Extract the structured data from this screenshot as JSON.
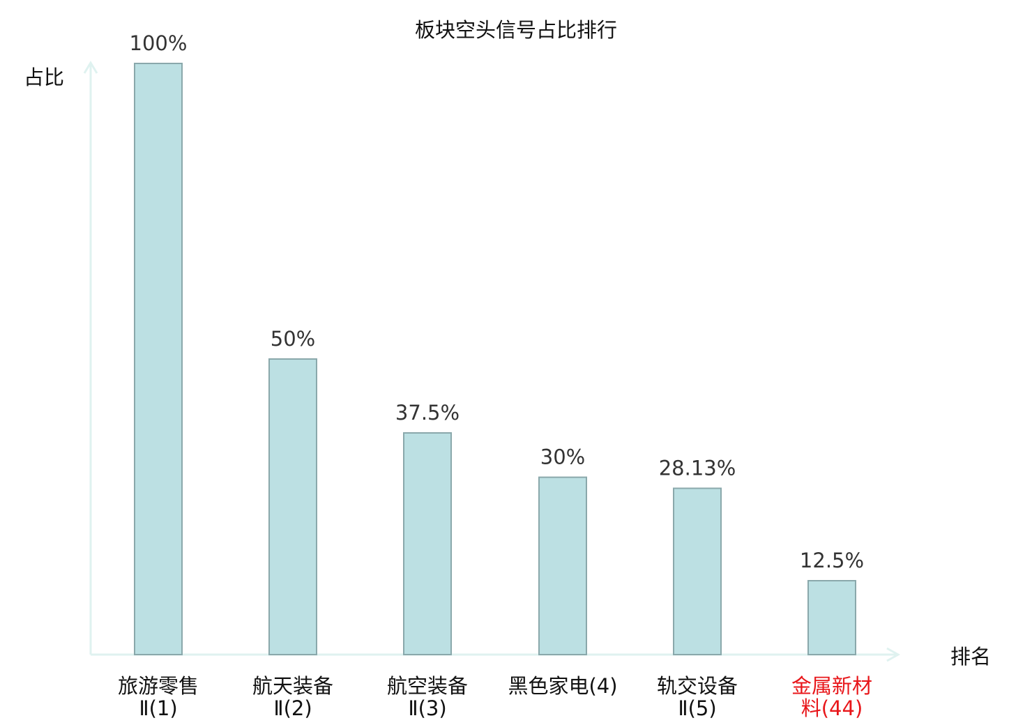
{
  "chart_data": {
    "type": "bar",
    "title": "板块空头信号占比排行",
    "xlabel": "排名",
    "ylabel": "占比",
    "ylim": [
      0,
      100
    ],
    "grid": false,
    "categories": [
      {
        "lines": [
          "旅游零售",
          "Ⅱ(1)"
        ],
        "highlight": false
      },
      {
        "lines": [
          "航天装备",
          "Ⅱ(2)"
        ],
        "highlight": false
      },
      {
        "lines": [
          "航空装备",
          "Ⅱ(3)"
        ],
        "highlight": false
      },
      {
        "lines": [
          "黑色家电(4)"
        ],
        "highlight": false
      },
      {
        "lines": [
          "轨交设备",
          "Ⅱ(5)"
        ],
        "highlight": false
      },
      {
        "lines": [
          "金属新材",
          "料(44)"
        ],
        "highlight": true
      }
    ],
    "values": [
      100,
      50,
      37.5,
      30,
      28.13,
      12.5
    ],
    "data_labels": [
      "100%",
      "50%",
      "37.5%",
      "30%",
      "28.13%",
      "12.5%"
    ],
    "colors": {
      "bar_fill": "#bce0e3",
      "bar_stroke": "#8aa8ab",
      "axis": "#dff2f0",
      "highlight_label": "#e8161a",
      "label": "#111111"
    }
  }
}
